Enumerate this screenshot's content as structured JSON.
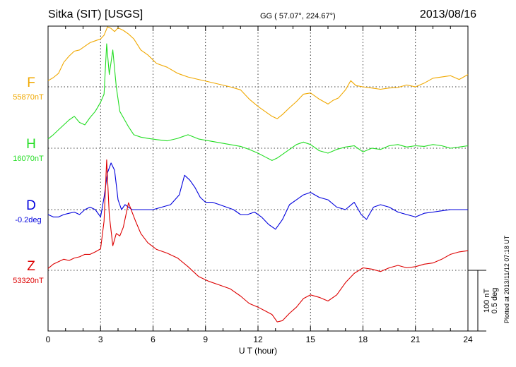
{
  "header": {
    "station": "Sitka (SIT)  [USGS]",
    "coordinates": "GG ( 57.07°, 224.67°)",
    "date": "2013/08/16"
  },
  "footer_note": "Plotted at 2013/11/12 07:18 UT",
  "scale_bar": {
    "line1": "100 nT",
    "line2": "0.5 deg"
  },
  "chart_data": {
    "type": "line",
    "xlabel": "U T (hour)",
    "xlim": [
      0,
      24
    ],
    "xticks": [
      0,
      3,
      6,
      9,
      12,
      15,
      18,
      21,
      24
    ],
    "grid": true,
    "series": [
      {
        "name": "F",
        "baseline": "55870nT",
        "color": "#f0a800",
        "x": [
          0,
          0.3,
          0.6,
          0.9,
          1.2,
          1.5,
          1.8,
          2.1,
          2.4,
          2.7,
          3.0,
          3.2,
          3.4,
          3.6,
          3.8,
          4.0,
          4.3,
          4.6,
          4.9,
          5.3,
          5.7,
          6.2,
          6.8,
          7.4,
          8.0,
          8.6,
          9.2,
          9.8,
          10.4,
          11.0,
          11.5,
          12.0,
          12.4,
          12.8,
          13.1,
          13.4,
          13.8,
          14.2,
          14.6,
          15.0,
          15.5,
          16.0,
          16.3,
          16.6,
          17.0,
          17.3,
          17.6,
          18.0,
          18.5,
          19.0,
          19.5,
          20.0,
          20.5,
          21.0,
          21.5,
          22.0,
          22.5,
          23.0,
          23.5,
          24.0
        ],
        "y": [
          10,
          15,
          22,
          40,
          50,
          58,
          60,
          66,
          72,
          75,
          78,
          84,
          100,
          95,
          90,
          96,
          92,
          86,
          78,
          60,
          52,
          38,
          32,
          22,
          16,
          12,
          8,
          4,
          0,
          -5,
          -20,
          -32,
          -40,
          -48,
          -52,
          -45,
          -34,
          -24,
          -12,
          -10,
          -20,
          -28,
          -22,
          -18,
          -5,
          10,
          2,
          0,
          -2,
          -4,
          -2,
          -1,
          3,
          0,
          6,
          14,
          16,
          18,
          12,
          20
        ]
      },
      {
        "name": "H",
        "baseline": "16070nT",
        "color": "#22dd22",
        "x": [
          0,
          0.3,
          0.6,
          0.9,
          1.2,
          1.5,
          1.8,
          2.1,
          2.4,
          2.7,
          3.0,
          3.2,
          3.35,
          3.5,
          3.7,
          3.9,
          4.1,
          4.3,
          4.6,
          4.9,
          5.3,
          5.7,
          6.2,
          6.8,
          7.4,
          8.0,
          8.6,
          9.2,
          9.8,
          10.4,
          11.0,
          11.5,
          12.0,
          12.4,
          12.8,
          13.1,
          13.4,
          13.8,
          14.2,
          14.6,
          15.0,
          15.5,
          16.0,
          16.5,
          17.0,
          17.5,
          18.0,
          18.5,
          19.0,
          19.5,
          20.0,
          20.5,
          21.0,
          21.5,
          22.0,
          22.5,
          23.0,
          23.5,
          24.0
        ],
        "y": [
          15,
          22,
          30,
          38,
          46,
          52,
          42,
          38,
          50,
          60,
          75,
          88,
          170,
          120,
          160,
          100,
          60,
          50,
          35,
          22,
          18,
          16,
          14,
          12,
          16,
          22,
          15,
          12,
          9,
          6,
          3,
          -2,
          -8,
          -14,
          -20,
          -16,
          -10,
          -2,
          6,
          10,
          6,
          -4,
          -8,
          -2,
          2,
          4,
          -6,
          0,
          -2,
          4,
          6,
          2,
          4,
          3,
          6,
          4,
          0,
          2,
          4
        ]
      },
      {
        "name": "D",
        "baseline": "-0.2deg",
        "color": "#0000dd",
        "x": [
          0,
          0.3,
          0.6,
          0.9,
          1.2,
          1.5,
          1.8,
          2.1,
          2.4,
          2.7,
          3.0,
          3.2,
          3.4,
          3.6,
          3.8,
          4.0,
          4.2,
          4.4,
          4.6,
          4.8,
          5.1,
          5.5,
          6.0,
          6.5,
          7.0,
          7.5,
          7.8,
          8.1,
          8.4,
          8.7,
          9.0,
          9.4,
          9.8,
          10.2,
          10.6,
          11.0,
          11.4,
          11.8,
          12.2,
          12.6,
          13.0,
          13.4,
          13.8,
          14.2,
          14.6,
          15.0,
          15.5,
          16.0,
          16.5,
          17.0,
          17.5,
          17.9,
          18.2,
          18.6,
          19.0,
          19.5,
          20.0,
          20.5,
          21.0,
          21.5,
          22.0,
          22.5,
          23.0,
          23.5,
          24.0
        ],
        "y": [
          -0.04,
          -0.06,
          -0.06,
          -0.04,
          -0.03,
          -0.02,
          -0.04,
          0.0,
          0.02,
          0.0,
          -0.06,
          0.1,
          0.3,
          0.38,
          0.32,
          0.08,
          0.0,
          0.04,
          0.02,
          0.0,
          0.0,
          0.0,
          0.0,
          0.02,
          0.04,
          0.12,
          0.28,
          0.24,
          0.18,
          0.1,
          0.06,
          0.06,
          0.04,
          0.02,
          0.0,
          -0.04,
          -0.04,
          -0.02,
          -0.06,
          -0.12,
          -0.16,
          -0.08,
          0.04,
          0.08,
          0.12,
          0.14,
          0.1,
          0.08,
          0.02,
          0.0,
          0.06,
          -0.04,
          -0.08,
          0.02,
          0.04,
          0.02,
          -0.02,
          -0.04,
          -0.06,
          -0.03,
          -0.02,
          -0.01,
          0.0,
          0.0,
          0.0
        ]
      },
      {
        "name": "Z",
        "baseline": "53320nT",
        "color": "#dd0000",
        "x": [
          0,
          0.3,
          0.6,
          0.9,
          1.2,
          1.5,
          1.8,
          2.1,
          2.4,
          2.7,
          3.0,
          3.2,
          3.35,
          3.5,
          3.7,
          3.9,
          4.1,
          4.3,
          4.6,
          4.8,
          5.0,
          5.3,
          5.7,
          6.2,
          6.8,
          7.4,
          8.0,
          8.6,
          9.2,
          9.8,
          10.4,
          11.0,
          11.5,
          12.0,
          12.4,
          12.8,
          13.1,
          13.4,
          13.8,
          14.2,
          14.6,
          15.0,
          15.5,
          16.0,
          16.5,
          17.0,
          17.5,
          18.0,
          18.5,
          19.0,
          19.5,
          20.0,
          20.5,
          21.0,
          21.5,
          22.0,
          22.5,
          23.0,
          23.5,
          24.0
        ],
        "y": [
          3,
          10,
          14,
          18,
          16,
          20,
          22,
          26,
          26,
          30,
          35,
          80,
          180,
          90,
          40,
          60,
          56,
          70,
          110,
          95,
          80,
          60,
          45,
          34,
          28,
          20,
          6,
          -10,
          -18,
          -24,
          -30,
          -42,
          -54,
          -60,
          -66,
          -72,
          -84,
          -82,
          -70,
          -60,
          -46,
          -40,
          -44,
          -50,
          -40,
          -20,
          -5,
          4,
          2,
          -2,
          4,
          8,
          4,
          6,
          10,
          12,
          18,
          26,
          30,
          32
        ]
      }
    ]
  }
}
